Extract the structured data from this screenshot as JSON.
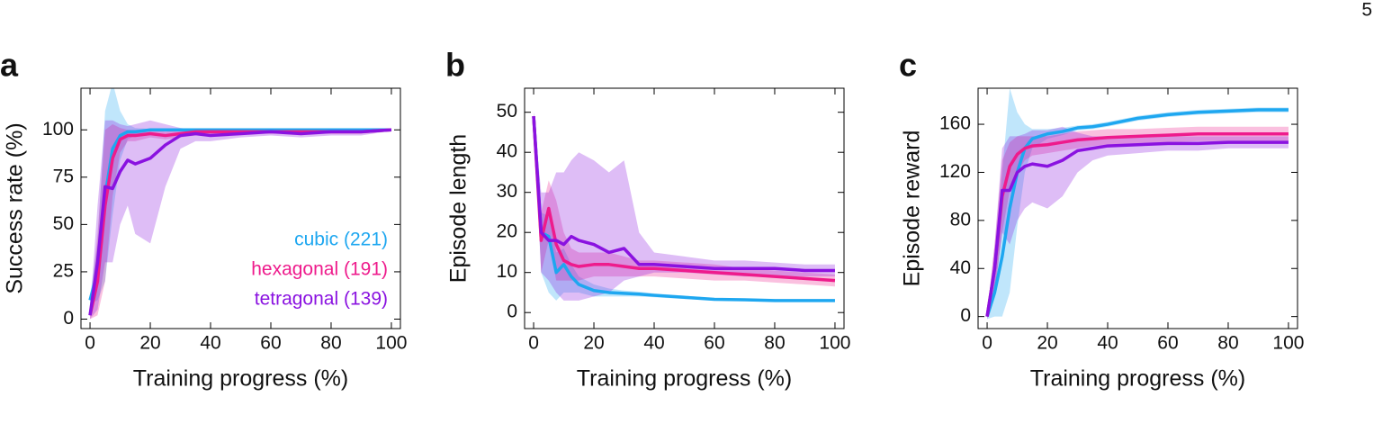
{
  "page_number": "5",
  "chart_data": [
    {
      "type": "line",
      "panel_label": "a",
      "x_label": "Training progress (%)",
      "y_label": "Success rate (%)",
      "x": [
        0,
        2.5,
        5,
        7.5,
        10,
        12.5,
        15,
        20,
        25,
        30,
        35,
        40,
        50,
        60,
        70,
        80,
        90,
        100
      ],
      "xlim": [
        -3,
        103
      ],
      "xticks": [
        0,
        20,
        40,
        60,
        80,
        100
      ],
      "ylim": [
        -5,
        122
      ],
      "yticks": [
        0,
        25,
        50,
        75,
        100
      ],
      "legend": "lower right",
      "series": [
        {
          "name": "cubic (221)",
          "color": "#1ea7f0",
          "values": [
            10,
            25,
            65,
            90,
            97,
            99,
            99,
            100,
            100,
            100,
            100,
            100,
            100,
            100,
            100,
            100,
            100,
            100
          ],
          "upper": [
            12,
            40,
            110,
            125,
            110,
            103,
            101,
            100.5,
            100.5,
            100.5,
            100.5,
            100.5,
            100.5,
            100.5,
            100.5,
            100.5,
            100.5,
            100.5
          ],
          "lower": [
            8,
            10,
            20,
            55,
            84,
            95,
            97,
            99.5,
            99.5,
            99.5,
            99.5,
            99.5,
            99.5,
            99.5,
            99.5,
            99.5,
            99.5,
            99.5
          ]
        },
        {
          "name": "hexagonal (191)",
          "color": "#ee1b8c",
          "values": [
            2,
            20,
            60,
            85,
            95,
            97,
            97,
            98,
            97,
            98,
            99,
            99,
            99,
            99,
            99,
            99,
            99,
            100
          ],
          "upper": [
            4,
            45,
            100,
            103,
            101,
            100,
            100,
            100,
            99,
            100,
            100,
            100,
            100,
            100,
            100,
            100,
            100,
            100.5
          ],
          "lower": [
            0,
            2,
            20,
            65,
            88,
            94,
            94,
            96,
            95,
            96,
            97,
            97,
            98,
            98,
            98,
            98,
            98,
            99.5
          ]
        },
        {
          "name": "tetragonal (139)",
          "color": "#8a12e0",
          "values": [
            2,
            30,
            70,
            69,
            78,
            84,
            82,
            85,
            92,
            97,
            98,
            97,
            98,
            99,
            98,
            99,
            99,
            100
          ],
          "upper": [
            4,
            60,
            105,
            105,
            103,
            102,
            103,
            105,
            103,
            101,
            100,
            100,
            100,
            100,
            100,
            100,
            100,
            100.5
          ],
          "lower": [
            0,
            5,
            30,
            30,
            50,
            60,
            45,
            40,
            70,
            90,
            94,
            94,
            96,
            97,
            96,
            97,
            97,
            99.5
          ]
        }
      ]
    },
    {
      "type": "line",
      "panel_label": "b",
      "x_label": "Training progress (%)",
      "y_label": "Episode length",
      "x": [
        0,
        2.5,
        5,
        7.5,
        10,
        12.5,
        15,
        20,
        25,
        30,
        35,
        40,
        50,
        60,
        70,
        80,
        90,
        100
      ],
      "xlim": [
        -3,
        103
      ],
      "xticks": [
        0,
        20,
        40,
        60,
        80,
        100
      ],
      "ylim": [
        -4,
        56
      ],
      "yticks": [
        0,
        10,
        20,
        30,
        40,
        50
      ],
      "series": [
        {
          "color": "#1ea7f0",
          "values": [
            49,
            20,
            19,
            10,
            12,
            9,
            7,
            5.5,
            5,
            4.8,
            4.6,
            4.3,
            3.8,
            3.3,
            3.2,
            3,
            3,
            3
          ],
          "upper": [
            50,
            25,
            24,
            15,
            16,
            12,
            9,
            7,
            6,
            5.5,
            5.2,
            4.8,
            4.2,
            3.6,
            3.5,
            3.3,
            3.3,
            3.3
          ],
          "lower": [
            48,
            10,
            5,
            3,
            5,
            5,
            5,
            4,
            4,
            4,
            4,
            3.8,
            3.4,
            3,
            2.9,
            2.7,
            2.7,
            2.7
          ]
        },
        {
          "color": "#ee1b8c",
          "values": [
            49,
            18,
            26,
            17,
            13,
            12,
            11.5,
            12,
            12,
            11.5,
            11,
            11,
            10.5,
            10,
            9.5,
            9,
            8.5,
            8
          ],
          "upper": [
            50,
            25,
            33,
            28,
            20,
            16,
            15,
            15,
            15,
            14,
            13,
            13,
            12.5,
            12,
            11,
            10.5,
            10,
            9.5
          ],
          "lower": [
            48,
            10,
            18,
            8,
            8,
            8,
            8,
            9,
            9,
            9,
            9,
            9,
            8.5,
            8,
            8,
            7.5,
            7,
            6.5
          ]
        },
        {
          "color": "#8a12e0",
          "values": [
            49,
            20,
            18,
            18,
            17,
            19,
            18,
            17,
            15,
            16,
            12,
            12,
            11.5,
            11,
            11,
            11,
            10.5,
            10.5
          ],
          "upper": [
            50,
            30,
            30,
            35,
            35,
            38,
            40,
            38,
            35,
            38,
            20,
            15,
            14,
            13,
            13,
            12.5,
            12,
            12
          ],
          "lower": [
            48,
            10,
            8,
            5,
            3,
            3,
            3,
            4,
            5,
            8,
            9,
            10,
            10,
            9.5,
            9,
            9,
            9,
            9
          ]
        }
      ]
    },
    {
      "type": "line",
      "panel_label": "c",
      "x_label": "Training progress (%)",
      "y_label": "Episode reward",
      "x": [
        0,
        2.5,
        5,
        7.5,
        10,
        12.5,
        15,
        20,
        25,
        30,
        35,
        40,
        50,
        60,
        70,
        80,
        90,
        100
      ],
      "xlim": [
        -3,
        103
      ],
      "xticks": [
        0,
        20,
        40,
        60,
        80,
        100
      ],
      "ylim": [
        -10,
        190
      ],
      "yticks": [
        0,
        40,
        80,
        120,
        160
      ],
      "series": [
        {
          "color": "#1ea7f0",
          "values": [
            0,
            20,
            50,
            90,
            120,
            140,
            148,
            152,
            154,
            157,
            158,
            160,
            165,
            168,
            170,
            171,
            172,
            172
          ],
          "upper": [
            2,
            45,
            120,
            190,
            170,
            160,
            156,
            156,
            157,
            159,
            160,
            162,
            167,
            170,
            172,
            173,
            174,
            174
          ],
          "lower": [
            -2,
            0,
            0,
            20,
            75,
            120,
            140,
            148,
            151,
            155,
            156,
            158,
            163,
            166,
            168,
            169,
            170,
            170
          ]
        },
        {
          "color": "#ee1b8c",
          "values": [
            0,
            40,
            100,
            125,
            135,
            140,
            142,
            143,
            145,
            147,
            148,
            149,
            150,
            151,
            152,
            152,
            152,
            152
          ],
          "upper": [
            2,
            60,
            130,
            145,
            150,
            150,
            150,
            150,
            152,
            154,
            155,
            156,
            156,
            157,
            158,
            158,
            158,
            158
          ],
          "lower": [
            -2,
            20,
            70,
            105,
            120,
            130,
            134,
            136,
            138,
            140,
            142,
            143,
            144,
            145,
            146,
            146,
            146,
            146
          ]
        },
        {
          "color": "#8a12e0",
          "values": [
            0,
            40,
            105,
            105,
            120,
            125,
            127,
            125,
            130,
            138,
            140,
            142,
            143,
            144,
            144,
            145,
            145,
            145
          ],
          "upper": [
            2,
            60,
            140,
            150,
            150,
            152,
            155,
            155,
            158,
            153,
            150,
            150,
            150,
            150,
            150,
            150,
            150,
            150
          ],
          "lower": [
            -2,
            20,
            70,
            60,
            80,
            90,
            95,
            90,
            100,
            120,
            130,
            134,
            136,
            138,
            138,
            140,
            140,
            140
          ]
        }
      ]
    }
  ]
}
